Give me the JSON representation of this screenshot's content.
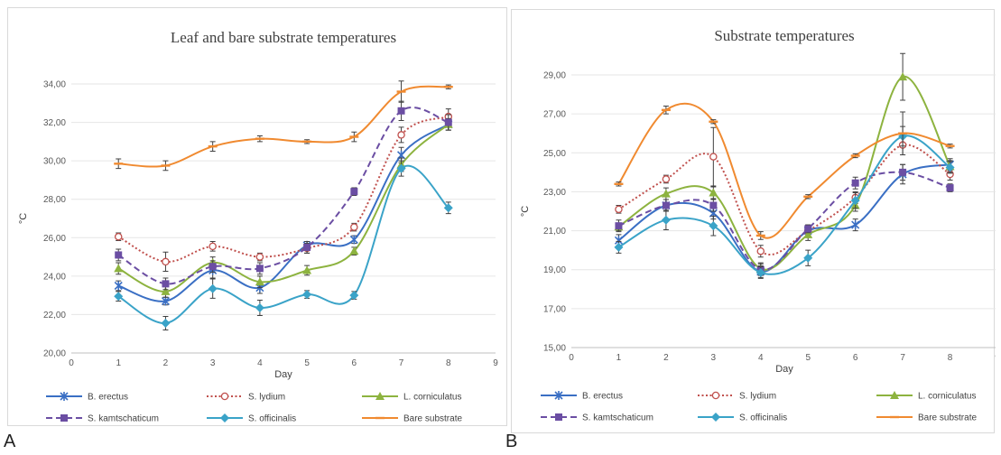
{
  "colors": {
    "B. erectus": "#3a6fc4",
    "S. lydium": "#c0504d",
    "L. corniculatus": "#8db33f",
    "S. kamtschaticum": "#6b4ea3",
    "S. officinalis": "#3aa3c8",
    "Bare substrate": "#f08a30"
  },
  "chart_data": [
    {
      "type": "line",
      "panel_label": "A",
      "title": "Leaf and bare substrate temperatures",
      "xlabel": "Day",
      "ylabel": "°C",
      "xlim": [
        0,
        9
      ],
      "ylim": [
        20,
        34
      ],
      "x_ticks": [
        0,
        1,
        2,
        3,
        4,
        5,
        6,
        7,
        8,
        9
      ],
      "y_ticks": [
        "20,00",
        "22,00",
        "24,00",
        "26,00",
        "28,00",
        "30,00",
        "32,00",
        "34,00"
      ],
      "grid": "horizontal",
      "legend": "bottom",
      "x": [
        1,
        2,
        3,
        4,
        5,
        6,
        7,
        8
      ],
      "series": [
        {
          "name": "B. erectus",
          "line": "solid",
          "marker": "star",
          "values": [
            23.5,
            22.7,
            24.3,
            23.4,
            25.6,
            25.9,
            30.3,
            31.9
          ],
          "errors": [
            0.25,
            0.2,
            0.4,
            0.3,
            0.2,
            0.2,
            0.4,
            0.3
          ]
        },
        {
          "name": "S. lydium",
          "line": "dotted",
          "marker": "open-circle",
          "values": [
            26.05,
            24.75,
            25.55,
            25.0,
            25.45,
            26.55,
            31.35,
            32.3
          ],
          "errors": [
            0.2,
            0.5,
            0.25,
            0.2,
            0.25,
            0.2,
            0.4,
            0.4
          ]
        },
        {
          "name": "L. corniculatus",
          "line": "solid",
          "marker": "triangle",
          "values": [
            24.4,
            23.2,
            24.7,
            23.7,
            24.3,
            25.3,
            29.8,
            31.9
          ],
          "errors": [
            0.3,
            0.3,
            0.3,
            0.3,
            0.25,
            0.2,
            0.35,
            0.3
          ]
        },
        {
          "name": "S. kamtschaticum",
          "line": "dashed",
          "marker": "square",
          "values": [
            25.1,
            23.6,
            24.5,
            24.4,
            25.5,
            28.4,
            32.6,
            32.0
          ],
          "errors": [
            0.3,
            0.3,
            0.3,
            0.3,
            0.3,
            0.2,
            0.5,
            0.4
          ]
        },
        {
          "name": "S. officinalis",
          "line": "solid",
          "marker": "diamond",
          "values": [
            22.95,
            21.55,
            23.35,
            22.35,
            23.05,
            23.0,
            29.6,
            27.55
          ],
          "errors": [
            0.25,
            0.35,
            0.5,
            0.4,
            0.2,
            0.2,
            0.4,
            0.3
          ]
        },
        {
          "name": "Bare substrate",
          "line": "solid",
          "marker": "dash",
          "values": [
            29.85,
            29.75,
            30.75,
            31.15,
            31.0,
            31.25,
            33.6,
            33.85
          ],
          "errors": [
            0.25,
            0.25,
            0.25,
            0.15,
            0.1,
            0.25,
            0.55,
            0.1
          ]
        }
      ]
    },
    {
      "type": "line",
      "panel_label": "B",
      "title": "Substrate temperatures",
      "xlabel": "Day",
      "ylabel": "°C",
      "xlim": [
        0,
        9
      ],
      "ylim": [
        15,
        29
      ],
      "x_ticks": [
        0,
        1,
        2,
        3,
        4,
        5,
        6,
        7,
        8,
        9
      ],
      "y_ticks": [
        "15,00",
        "17,00",
        "19,00",
        "21,00",
        "23,00",
        "25,00",
        "27,00",
        "29,00"
      ],
      "grid": "horizontal",
      "legend": "bottom",
      "x": [
        1,
        2,
        3,
        4,
        5,
        6,
        7,
        8
      ],
      "series": [
        {
          "name": "B. erectus",
          "line": "solid",
          "marker": "star",
          "values": [
            20.5,
            22.3,
            21.9,
            18.9,
            21.0,
            21.3,
            23.9,
            24.4
          ],
          "errors": [
            0.3,
            0.3,
            0.3,
            0.3,
            0.2,
            0.3,
            0.5,
            0.3
          ]
        },
        {
          "name": "S. lydium",
          "line": "dotted",
          "marker": "open-circle",
          "values": [
            22.1,
            23.65,
            24.8,
            19.95,
            21.0,
            22.7,
            25.4,
            23.9
          ],
          "errors": [
            0.2,
            0.2,
            1.5,
            0.3,
            0.3,
            0.3,
            0.5,
            0.3
          ]
        },
        {
          "name": "L. corniculatus",
          "line": "solid",
          "marker": "triangle",
          "values": [
            21.2,
            22.9,
            22.95,
            19.05,
            20.8,
            22.3,
            28.9,
            24.3
          ],
          "errors": [
            0.2,
            0.3,
            0.3,
            0.3,
            0.3,
            0.3,
            1.2,
            0.3
          ]
        },
        {
          "name": "S. kamtschaticum",
          "line": "dashed",
          "marker": "square",
          "values": [
            21.25,
            22.3,
            22.3,
            19.0,
            21.1,
            23.45,
            24.0,
            23.2
          ],
          "errors": [
            0.3,
            0.3,
            0.3,
            0.3,
            0.2,
            0.3,
            0.4,
            0.2
          ]
        },
        {
          "name": "S. officinalis",
          "line": "solid",
          "marker": "diamond",
          "values": [
            20.15,
            21.55,
            21.25,
            18.85,
            19.6,
            22.55,
            25.85,
            24.25
          ],
          "errors": [
            0.3,
            0.5,
            0.5,
            0.3,
            0.4,
            0.4,
            0.5,
            0.3
          ]
        },
        {
          "name": "Bare substrate",
          "line": "solid",
          "marker": "dash",
          "values": [
            23.4,
            27.2,
            26.6,
            20.75,
            22.75,
            24.85,
            26.0,
            25.35
          ],
          "errors": [
            0.1,
            0.2,
            0.1,
            0.2,
            0.1,
            0.1,
            1.1,
            0.1
          ]
        }
      ]
    }
  ]
}
